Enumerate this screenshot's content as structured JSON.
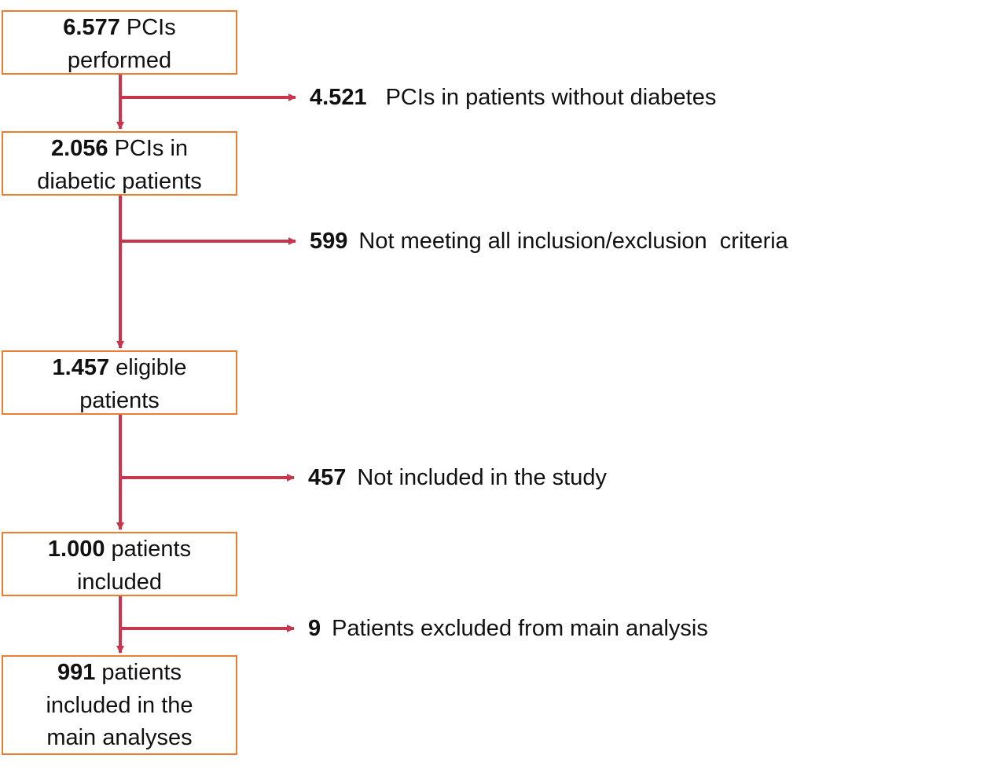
{
  "colors": {
    "box_border": "#ED7D31",
    "arrow": "#C8364E",
    "text": "#111111"
  },
  "boxes": [
    {
      "num": "6.577",
      "text_a": " PCIs",
      "text_b": "performed",
      "text_c": ""
    },
    {
      "num": "2.056",
      "text_a": " PCIs in",
      "text_b": "diabetic patients",
      "text_c": ""
    },
    {
      "num": "1.457",
      "text_a": " eligible",
      "text_b": "patients",
      "text_c": ""
    },
    {
      "num": "1.000",
      "text_a": " patients",
      "text_b": "included",
      "text_c": ""
    },
    {
      "num": "991",
      "text_a": " patients",
      "text_b": "included in the",
      "text_c": "main analyses"
    }
  ],
  "exclusions": [
    {
      "num": "4.521",
      "text": "PCIs in patients without diabetes"
    },
    {
      "num": "599",
      "text": "Not meeting all inclusion/exclusion  criteria"
    },
    {
      "num": "457",
      "text": "Not included in the study"
    },
    {
      "num": "9",
      "text": "Patients excluded from main analysis"
    }
  ]
}
